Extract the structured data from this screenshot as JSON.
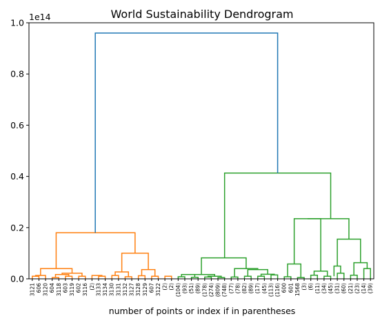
{
  "chart_data": {
    "type": "dendrogram",
    "title": "World Sustainability Dendrogram",
    "xlabel": "number of points or index if in parentheses",
    "ylabel": "",
    "y_offset_label": "1e14",
    "ylim": [
      0,
      1.0
    ],
    "yticks": [
      "0.0",
      "0.2",
      "0.4",
      "0.6",
      "0.8",
      "1.0"
    ],
    "colors": {
      "left_cluster": "#ff7f0e",
      "right_cluster": "#2ca02c",
      "root": "#1f77b4",
      "axis": "#000000"
    },
    "leaves": [
      "3121",
      "606",
      "3120",
      "604",
      "3118",
      "603",
      "3119",
      "602",
      "3116",
      "(2)",
      "3133",
      "3134",
      "3130",
      "3131",
      "3132",
      "3127",
      "3128",
      "3129",
      "607",
      "3122",
      "(2)",
      "(2)",
      "(104)",
      "(93)",
      "(51)",
      "(89)",
      "(178)",
      "(274)",
      "(809)",
      "(748)",
      "(77)",
      "(78)",
      "(82)",
      "(89)",
      "(17)",
      "(45)",
      "(113)",
      "(116)",
      "600",
      "601",
      "1568",
      "(3)",
      "(6)",
      "(11)",
      "(34)",
      "(45)",
      "(31)",
      "(60)",
      "(21)",
      "(23)",
      "(14)",
      "(39)"
    ],
    "links": [
      {
        "cluster": "left",
        "a": 0,
        "ha": 0,
        "b": 1,
        "hb": 0,
        "h": 0.01
      },
      {
        "cluster": "left",
        "a": 3,
        "ha": 0,
        "b": 4,
        "hb": 0,
        "h": 0.005
      },
      {
        "cluster": "left",
        "a": 5,
        "ha": 0,
        "b": 6,
        "hb": 0,
        "h": 0.01
      },
      {
        "cluster": "left",
        "a": 3.5,
        "ha": 0.005,
        "b": 5.5,
        "hb": 0.01,
        "h": 0.017
      },
      {
        "cluster": "left",
        "a": 7,
        "ha": 0,
        "b": 8,
        "hb": 0,
        "h": 0.01
      },
      {
        "cluster": "left",
        "a": 4.5,
        "ha": 0.017,
        "b": 7.5,
        "hb": 0.01,
        "h": 0.022
      },
      {
        "cluster": "left",
        "a": 0.5,
        "ha": 0.01,
        "b": 2,
        "hb": 0,
        "h": 0.013
      },
      {
        "cluster": "left",
        "a": 1.25,
        "ha": 0.013,
        "b": 6,
        "hb": 0.022,
        "h": 0.04
      },
      {
        "cluster": "left",
        "a": 10,
        "ha": 0,
        "b": 11,
        "hb": 0,
        "h": 0.01
      },
      {
        "cluster": "left",
        "a": 12,
        "ha": 0,
        "b": 13,
        "hb": 0,
        "h": 0.013
      },
      {
        "cluster": "left",
        "a": 14,
        "ha": 0,
        "b": 15,
        "hb": 0,
        "h": 0.008
      },
      {
        "cluster": "left",
        "a": 12.5,
        "ha": 0.013,
        "b": 14.5,
        "hb": 0.008,
        "h": 0.027
      },
      {
        "cluster": "left",
        "a": 16,
        "ha": 0,
        "b": 17,
        "hb": 0,
        "h": 0.012
      },
      {
        "cluster": "left",
        "a": 18,
        "ha": 0,
        "b": 19,
        "hb": 0,
        "h": 0.01
      },
      {
        "cluster": "left",
        "a": 16.5,
        "ha": 0.012,
        "b": 18.5,
        "hb": 0.01,
        "h": 0.036
      },
      {
        "cluster": "left",
        "a": 20,
        "ha": 0,
        "b": 21,
        "hb": 0,
        "h": 0.01
      },
      {
        "cluster": "left",
        "a": 9,
        "ha": 0,
        "b": 10.5,
        "hb": 0.01,
        "h": 0.013
      },
      {
        "cluster": "left",
        "a": 13.5,
        "ha": 0.027,
        "b": 17.5,
        "hb": 0.036,
        "h": 0.1
      },
      {
        "cluster": "left",
        "a": 3.6,
        "ha": 0.04,
        "b": 15.5,
        "hb": 0.1,
        "h": 0.18
      },
      {
        "cluster": "right",
        "a": 22,
        "ha": 0,
        "b": 23,
        "hb": 0,
        "h": 0.008
      },
      {
        "cluster": "right",
        "a": 24,
        "ha": 0,
        "b": 25,
        "hb": 0,
        "h": 0.006
      },
      {
        "cluster": "right",
        "a": 22.5,
        "ha": 0.008,
        "b": 24.5,
        "hb": 0.006,
        "h": 0.017
      },
      {
        "cluster": "right",
        "a": 26,
        "ha": 0,
        "b": 27,
        "hb": 0,
        "h": 0.007
      },
      {
        "cluster": "right",
        "a": 28,
        "ha": 0,
        "b": 29,
        "hb": 0,
        "h": 0.005
      },
      {
        "cluster": "right",
        "a": 26.5,
        "ha": 0.007,
        "b": 28.5,
        "hb": 0.005,
        "h": 0.01
      },
      {
        "cluster": "right",
        "a": 23.5,
        "ha": 0.017,
        "b": 27.5,
        "hb": 0.01,
        "h": 0.017
      },
      {
        "cluster": "right",
        "a": 30,
        "ha": 0,
        "b": 31,
        "hb": 0,
        "h": 0.007
      },
      {
        "cluster": "right",
        "a": 32,
        "ha": 0,
        "b": 33,
        "hb": 0,
        "h": 0.01
      },
      {
        "cluster": "right",
        "a": 34,
        "ha": 0,
        "b": 35,
        "hb": 0,
        "h": 0.01
      },
      {
        "cluster": "right",
        "a": 36,
        "ha": 0,
        "b": 37,
        "hb": 0,
        "h": 0.015
      },
      {
        "cluster": "right",
        "a": 34.5,
        "ha": 0.01,
        "b": 36.5,
        "hb": 0.015,
        "h": 0.018
      },
      {
        "cluster": "right",
        "a": 32.5,
        "ha": 0.01,
        "b": 35.5,
        "hb": 0.018,
        "h": 0.036
      },
      {
        "cluster": "right",
        "a": 30.5,
        "ha": 0.007,
        "b": 34,
        "hb": 0.036,
        "h": 0.04
      },
      {
        "cluster": "right",
        "a": 25.5,
        "ha": 0.017,
        "b": 32.25,
        "hb": 0.04,
        "h": 0.082
      },
      {
        "cluster": "right",
        "a": 38,
        "ha": 0,
        "b": 39,
        "hb": 0,
        "h": 0.008
      },
      {
        "cluster": "right",
        "a": 40,
        "ha": 0,
        "b": 41,
        "hb": 0,
        "h": 0.005
      },
      {
        "cluster": "right",
        "a": 38.5,
        "ha": 0.008,
        "b": 40.5,
        "hb": 0.005,
        "h": 0.058
      },
      {
        "cluster": "right",
        "a": 42,
        "ha": 0,
        "b": 43,
        "hb": 0,
        "h": 0.014
      },
      {
        "cluster": "right",
        "a": 44,
        "ha": 0,
        "b": 45,
        "hb": 0,
        "h": 0.01
      },
      {
        "cluster": "right",
        "a": 42.5,
        "ha": 0.014,
        "b": 44.5,
        "hb": 0.01,
        "h": 0.03
      },
      {
        "cluster": "right",
        "a": 39.5,
        "ha": 0.058,
        "b": 43.5,
        "hb": 0.03,
        "h": 0.235
      },
      {
        "cluster": "right",
        "a": 46,
        "ha": 0,
        "b": 47,
        "hb": 0,
        "h": 0.022
      },
      {
        "cluster": "right",
        "a": 45.5,
        "ha": 0.01,
        "b": 46.5,
        "hb": 0.022,
        "h": 0.05
      },
      {
        "cluster": "right",
        "a": 48,
        "ha": 0,
        "b": 49,
        "hb": 0,
        "h": 0.014
      },
      {
        "cluster": "right",
        "a": 50,
        "ha": 0,
        "b": 51,
        "hb": 0,
        "h": 0.04
      },
      {
        "cluster": "right",
        "a": 48.5,
        "ha": 0.014,
        "b": 50.5,
        "hb": 0.04,
        "h": 0.063
      },
      {
        "cluster": "right",
        "a": 46,
        "ha": 0.05,
        "b": 49.5,
        "hb": 0.063,
        "h": 0.155
      },
      {
        "cluster": "right",
        "a": 41.5,
        "ha": 0.235,
        "b": 47.75,
        "hb": 0.155,
        "h": 0.235
      },
      {
        "cluster": "right",
        "a": 29,
        "ha": 0.082,
        "b": 45,
        "hb": 0.235,
        "h": 0.413
      },
      {
        "cluster": "root",
        "a": 9.5,
        "ha": 0.18,
        "b": 37,
        "hb": 0.413,
        "h": 0.96
      }
    ]
  }
}
